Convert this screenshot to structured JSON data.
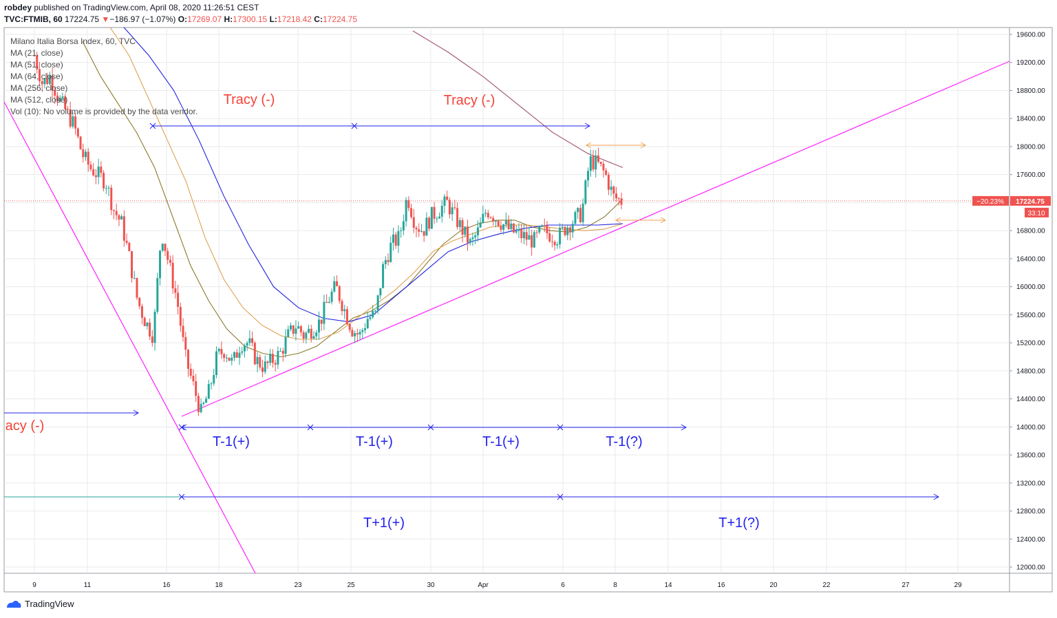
{
  "header": {
    "author": "robdey",
    "published_text": "published on TradingView.com, April 08, 2020 11:26:51 CEST",
    "symbol": "TVC:FTMIB, 60",
    "last_price": "17224.75",
    "change_arrow": "▼",
    "change": "−186.97 (−1.07%)",
    "o_label": "O:",
    "o_value": "17269.07",
    "h_label": "H:",
    "h_value": "17300.15",
    "l_label": "L:",
    "l_value": "17218.42",
    "c_label": "C:",
    "c_value": "17224.75"
  },
  "legend": {
    "title": "Milano Italia Borsa Index, 60, TVC",
    "items": [
      "MA (21, close)",
      "MA (51, close)",
      "MA (64, close)",
      "MA (256, close)",
      "MA (512, close)",
      "Vol (10): No volume is provided by the data vendor."
    ]
  },
  "price_tag": {
    "pct": "−20.23%",
    "price": "17224.75",
    "countdown": "33:10"
  },
  "footer": {
    "brand": "TradingView"
  },
  "colors": {
    "up": "#26a69a",
    "down": "#ef5350",
    "grid": "#e8eaee",
    "ma21": "#8b7a2a",
    "ma51": "#e0a050",
    "ma64": "#2020e0",
    "ma256": "#a05070",
    "trendline": "#ff20ff",
    "annotation_blue": "#2222ee",
    "annotation_red": "#f44336",
    "orange_arrow": "#f0a050"
  },
  "chart_data": {
    "type": "candlestick",
    "y_axis": {
      "min": 12000,
      "max": 19600,
      "step": 400,
      "ticks": [
        "19600.00",
        "19200.00",
        "18800.00",
        "18400.00",
        "18000.00",
        "17600.00",
        "17200.00",
        "16800.00",
        "16400.00",
        "16000.00",
        "15600.00",
        "15200.00",
        "14800.00",
        "14400.00",
        "14000.00",
        "13600.00",
        "13200.00",
        "12800.00",
        "12400.00",
        "12000.00"
      ]
    },
    "x_axis": {
      "tick_labels": [
        "9",
        "11",
        "16",
        "18",
        "23",
        "25",
        "30",
        "Apr",
        "6",
        "8",
        "14",
        "16",
        "20",
        "22",
        "27",
        "29"
      ]
    },
    "current_price": 17224.75,
    "close_path": [
      19300,
      18900,
      19000,
      18700,
      18500,
      18300,
      17900,
      17700,
      17600,
      17500,
      17100,
      16900,
      16400,
      15800,
      15500,
      15300,
      16800,
      16300,
      15800,
      15000,
      14600,
      14200,
      14500,
      15000,
      15100,
      14900,
      15200,
      15200,
      14950,
      14850,
      14950,
      15050,
      15300,
      15450,
      15300,
      15400,
      15500,
      15800,
      16000,
      15700,
      15400,
      15300,
      15550,
      15600,
      16300,
      16600,
      16700,
      17300,
      16900,
      16800,
      17000,
      17100,
      17200,
      17000,
      16800,
      16600,
      16800,
      17100,
      17000,
      16900,
      16800,
      16750,
      16700,
      16650,
      16800,
      16750,
      16700,
      16850,
      16950,
      17050,
      17800,
      17750,
      17600,
      17280,
      17224
    ],
    "moving_averages": [
      {
        "name": "MA (21, close)",
        "values": [
          19500,
          19000,
          18600,
          18200,
          17700,
          17000,
          16300,
          15800,
          15400,
          15150,
          15050,
          15000,
          15050,
          15150,
          15350,
          15550,
          15650,
          15800,
          16000,
          16300,
          16600,
          16800,
          16900,
          16950,
          16950,
          16850,
          16800,
          16780,
          16850,
          17000,
          17250
        ]
      },
      {
        "name": "MA (51, close)",
        "values": [
          19700,
          19300,
          18700,
          18100,
          17500,
          16700,
          16100,
          15700,
          15450,
          15300,
          15250,
          15250,
          15350,
          15550,
          15750,
          15950,
          16200,
          16500,
          16650,
          16750,
          16850,
          16880,
          16880,
          16850,
          16820,
          16800,
          16820,
          16900
        ]
      },
      {
        "name": "MA (64, close)",
        "values": [
          19700,
          19300,
          18800,
          18100,
          17300,
          16600,
          16000,
          15700,
          15550,
          15500,
          15600,
          15900,
          16200,
          16500,
          16650,
          16750,
          16830,
          16880,
          16880,
          16880,
          16900
        ]
      },
      {
        "name": "MA (256, close)",
        "values": [
          19650,
          19350,
          19000,
          18600,
          18200,
          17900,
          17700
        ]
      }
    ],
    "annotations": [
      {
        "type": "text",
        "text": "Tracy (-)"
      },
      {
        "type": "text",
        "text": "Tracy (-)"
      },
      {
        "type": "text",
        "text": "acy (-)"
      },
      {
        "type": "text",
        "text": "T-1(+)"
      },
      {
        "type": "text",
        "text": "T-1(+)"
      },
      {
        "type": "text",
        "text": "T-1(+)"
      },
      {
        "type": "text",
        "text": "T-1(?)"
      },
      {
        "type": "text",
        "text": "T+1(+)"
      },
      {
        "type": "text",
        "text": "T+1(?)"
      }
    ]
  }
}
